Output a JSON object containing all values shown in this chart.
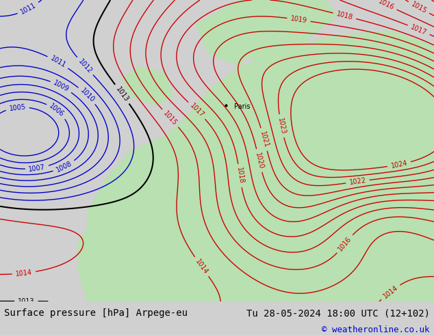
{
  "title_left": "Surface pressure [hPa] Arpege-eu",
  "title_right": "Tu 28-05-2024 18:00 UTC (12+102)",
  "credit": "© weatheronline.co.uk",
  "bg_color": "#d0d0d0",
  "land_color": "#b8e0b0",
  "sea_color": "#d8d8e8",
  "contour_blue_color": "#0000cc",
  "contour_red_color": "#cc0000",
  "contour_black_color": "#000000",
  "label_fontsize": 9,
  "footer_fontsize": 10,
  "credit_fontsize": 9,
  "figsize": [
    6.34,
    4.9
  ],
  "dpi": 100,
  "footer_bg": "#ffffff",
  "footer_text_color": "#000000",
  "credit_color": "#0000cc"
}
